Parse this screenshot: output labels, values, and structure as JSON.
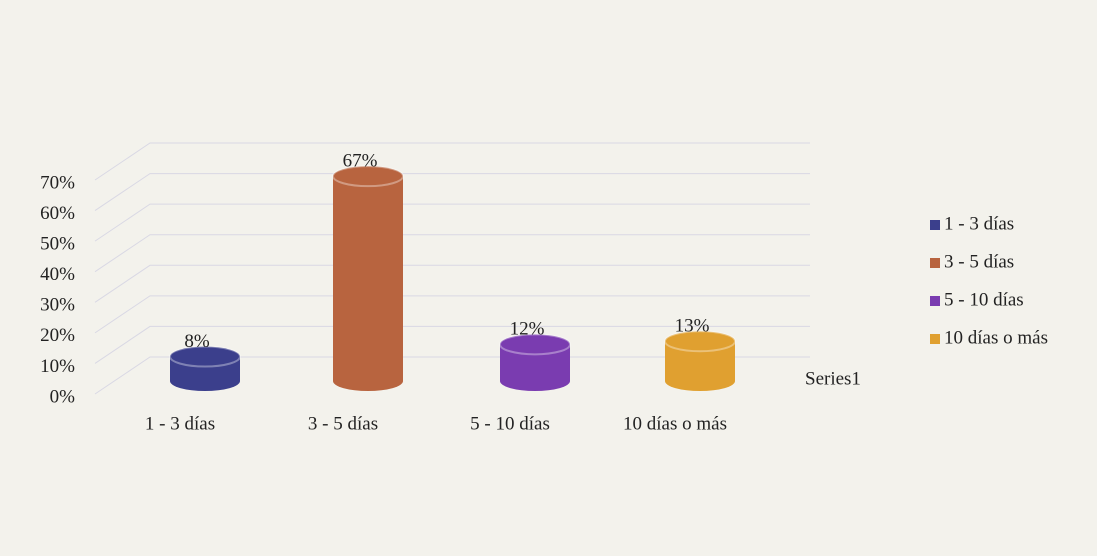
{
  "chart_data": {
    "type": "bar",
    "categories": [
      "1 - 3 días",
      "3 - 5 días",
      "5 - 10 días",
      "10 días o más"
    ],
    "series": [
      {
        "name": "Series1",
        "values": [
          8,
          67,
          12,
          13
        ],
        "value_labels": [
          "8%",
          "67%",
          "12%",
          "13%"
        ],
        "colors": [
          "#3b3f8c",
          "#b8643f",
          "#7a3cb0",
          "#e0a030"
        ]
      }
    ],
    "ylim": [
      0,
      70
    ],
    "yticks": [
      {
        "value": 0,
        "label": "0%"
      },
      {
        "value": 10,
        "label": "10%"
      },
      {
        "value": 20,
        "label": "20%"
      },
      {
        "value": 30,
        "label": "30%"
      },
      {
        "value": 40,
        "label": "40%"
      },
      {
        "value": 50,
        "label": "50%"
      },
      {
        "value": 60,
        "label": "60%"
      },
      {
        "value": 70,
        "label": "70%"
      }
    ],
    "grid": true,
    "legend": "right"
  }
}
